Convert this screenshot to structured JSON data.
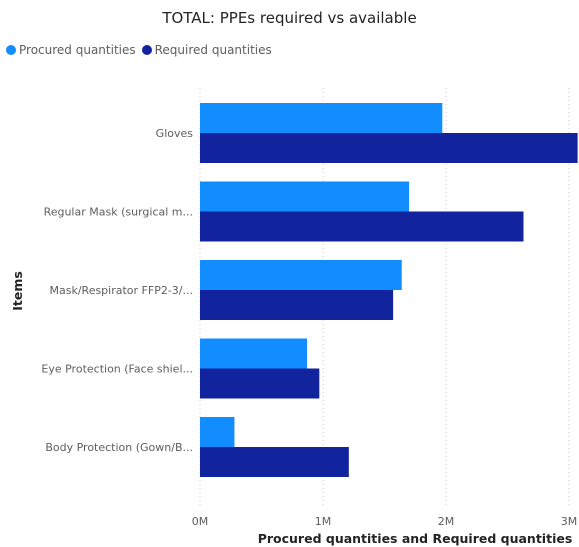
{
  "chart_data": {
    "type": "bar",
    "orientation": "horizontal",
    "title": "TOTAL: PPEs required vs available",
    "xlabel": "Procured quantities and Required quantities",
    "ylabel": "Items",
    "categories": [
      "Gloves",
      "Regular Mask (surgical m...",
      "Mask/Respirator FFP2-3/...",
      "Eye Protection (Face shiel...",
      "Body Protection (Gown/B..."
    ],
    "series": [
      {
        "name": "Procured quantities",
        "color": "#118dff",
        "values": [
          1970000,
          1700000,
          1640000,
          870000,
          280000
        ]
      },
      {
        "name": "Required quantities",
        "color": "#12239e",
        "values": [
          3070000,
          2630000,
          1570000,
          970000,
          1210000
        ]
      }
    ],
    "xlim": [
      0,
      3000000
    ],
    "xticks": [
      {
        "value": 0,
        "label": "0M"
      },
      {
        "value": 1000000,
        "label": "1M"
      },
      {
        "value": 2000000,
        "label": "2M"
      },
      {
        "value": 3000000,
        "label": "3M"
      }
    ],
    "legend_position": "top-left",
    "grid": "vertical-dotted"
  }
}
